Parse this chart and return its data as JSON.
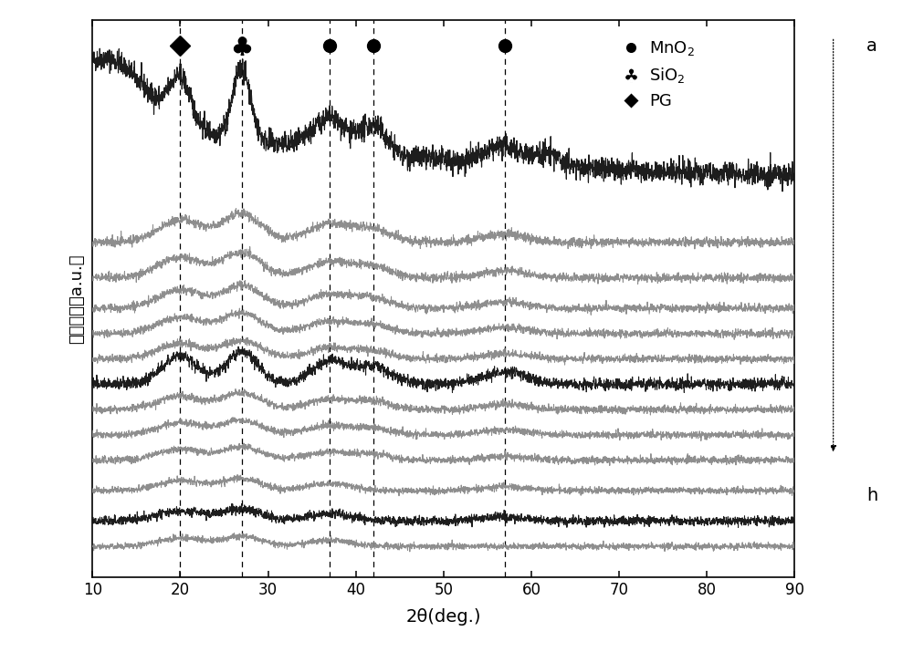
{
  "title": "",
  "xlabel": "2θ(deg.)",
  "ylabel": "累积强度（a.u.）",
  "xlim": [
    10,
    90
  ],
  "dashed_lines": [
    20,
    27,
    37,
    42,
    57
  ],
  "noise_seed": 42,
  "x_ticks": [
    10,
    20,
    30,
    40,
    50,
    60,
    70,
    80,
    90
  ],
  "curve_offsets": [
    3.6,
    3.0,
    2.65,
    2.35,
    2.1,
    1.85,
    1.6,
    1.35,
    1.1,
    0.85,
    0.55,
    0.25,
    0.0
  ],
  "curve_colors": [
    "#111111",
    "#888888",
    "#888888",
    "#888888",
    "#888888",
    "#888888",
    "#111111",
    "#888888",
    "#888888",
    "#888888",
    "#888888",
    "#111111",
    "#888888"
  ],
  "curve_noise": [
    0.055,
    0.022,
    0.02,
    0.019,
    0.018,
    0.018,
    0.028,
    0.018,
    0.017,
    0.017,
    0.016,
    0.022,
    0.015
  ],
  "legend_items": [
    {
      "marker": "circle",
      "label": "MnO$_2$"
    },
    {
      "marker": "club",
      "label": "SiO$_2$"
    },
    {
      "marker": "diamond",
      "label": "PG"
    }
  ],
  "annotation_a": "a",
  "annotation_h": "h"
}
